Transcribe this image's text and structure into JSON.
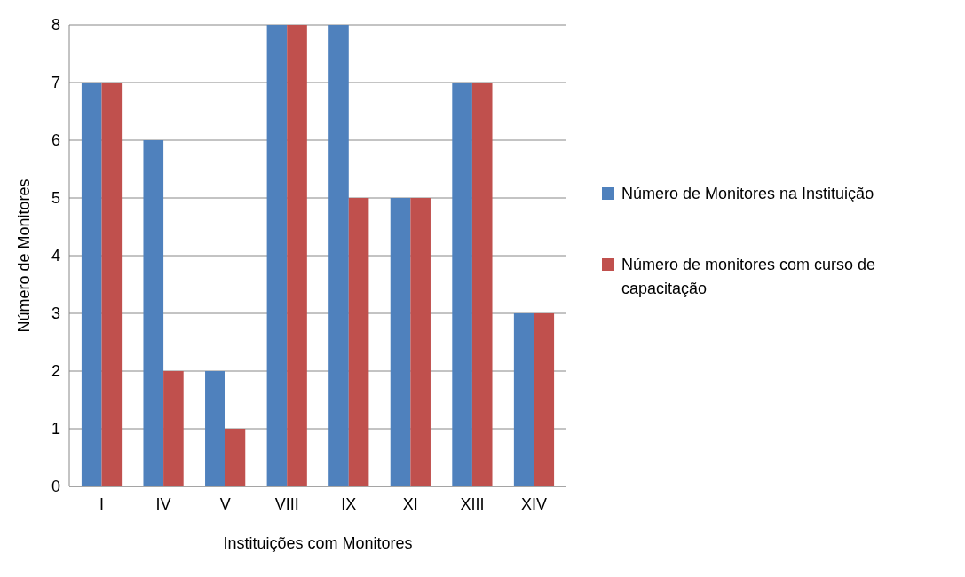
{
  "chart_data": {
    "type": "bar",
    "xlabel": "Instituições com Monitores",
    "ylabel": "Número de Monitores",
    "categories": [
      "I",
      "IV",
      "V",
      "VIII",
      "IX",
      "XI",
      "XIII",
      "XIV"
    ],
    "series": [
      {
        "name": "Número de Monitores na Instituição",
        "color": "#4f81bd",
        "values": [
          7,
          6,
          2,
          8,
          8,
          5,
          7,
          3
        ]
      },
      {
        "name": "Número de monitores com curso de capacitação",
        "color": "#c0504d",
        "values": [
          7,
          2,
          1,
          8,
          5,
          5,
          7,
          3
        ]
      }
    ],
    "ylim": [
      0,
      8
    ],
    "yticks": [
      0,
      1,
      2,
      3,
      4,
      5,
      6,
      7,
      8
    ],
    "grid": "y",
    "legend": "right"
  }
}
